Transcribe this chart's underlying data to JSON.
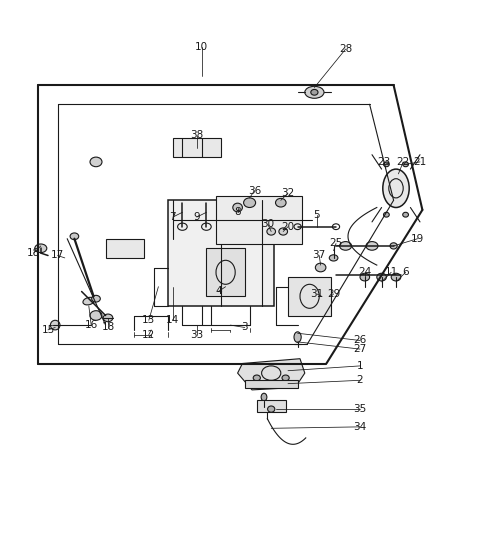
{
  "bg_color": "#ffffff",
  "line_color": "#1a1a1a",
  "fig_width": 4.8,
  "fig_height": 5.35,
  "dpi": 100
}
